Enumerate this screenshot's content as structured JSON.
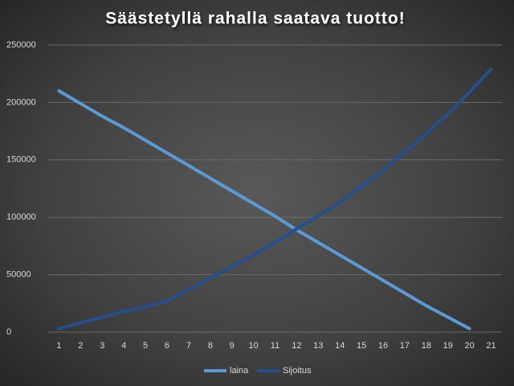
{
  "chart_data": {
    "type": "line",
    "title": "Säästetyllä rahalla saatava tuotto!",
    "categories": [
      "1",
      "2",
      "3",
      "4",
      "5",
      "6",
      "7",
      "8",
      "9",
      "10",
      "11",
      "12",
      "13",
      "14",
      "15",
      "16",
      "17",
      "18",
      "19",
      "20",
      "21"
    ],
    "series": [
      {
        "name": "laina",
        "color": "#5b9bd5",
        "values": [
          210000,
          199000,
          188000,
          178000,
          167000,
          156000,
          145000,
          134000,
          123000,
          112000,
          101000,
          89000,
          78000,
          67000,
          56000,
          45000,
          34000,
          23000,
          13000,
          3000,
          null
        ]
      },
      {
        "name": "Sijoitus",
        "color": "#264f8f",
        "values": [
          3000,
          8000,
          13000,
          18000,
          22000,
          27000,
          37000,
          47000,
          57000,
          67000,
          78000,
          90000,
          101000,
          113000,
          127000,
          141000,
          157000,
          173000,
          190000,
          209000,
          229000
        ]
      }
    ],
    "ylim": [
      0,
      250000
    ],
    "yticks": [
      0,
      50000,
      100000,
      150000,
      200000,
      250000
    ],
    "grid": true,
    "legend": "bottom"
  }
}
